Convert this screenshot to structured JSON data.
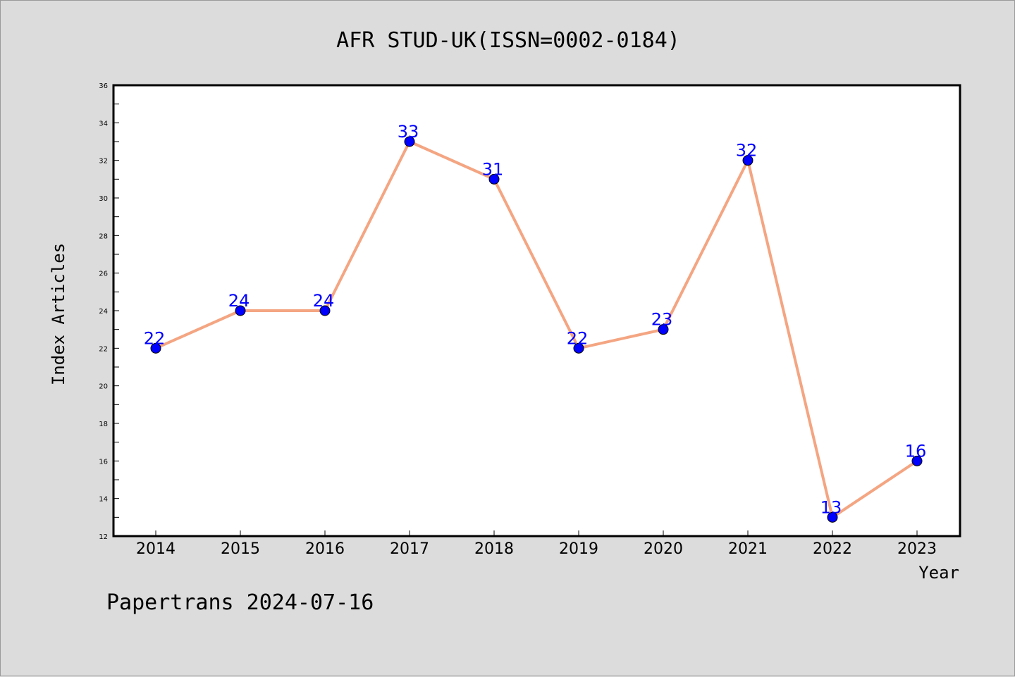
{
  "chart_data": {
    "type": "line",
    "title": "AFR STUD-UK(ISSN=0002-0184)",
    "xlabel": "Year",
    "ylabel": "Index Articles",
    "categories": [
      "2014",
      "2015",
      "2016",
      "2017",
      "2018",
      "2019",
      "2020",
      "2021",
      "2022",
      "2023"
    ],
    "values": [
      22,
      24,
      24,
      33,
      31,
      22,
      23,
      32,
      13,
      16
    ],
    "ylim": [
      12,
      36
    ],
    "yticks": [
      12,
      14,
      16,
      18,
      20,
      22,
      24,
      26,
      28,
      30,
      32,
      34,
      36
    ],
    "grid": false,
    "line_color": "#f4a582",
    "marker_color": "#0000ff",
    "label_color": "#0000ff"
  },
  "footer": "Papertrans 2024-07-16"
}
